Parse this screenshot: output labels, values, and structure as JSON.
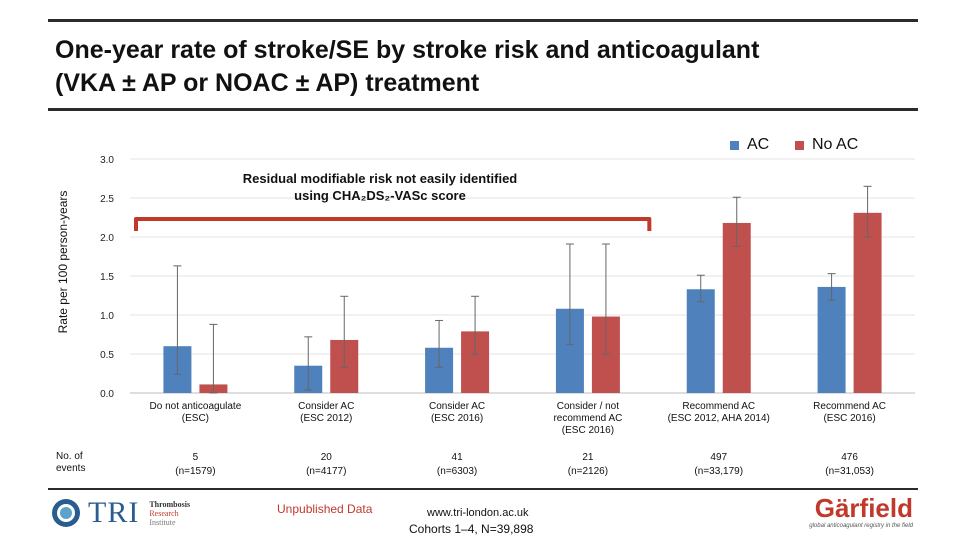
{
  "title": {
    "line1": "One-year rate of stroke/SE by stroke risk and anticoagulant",
    "line2": "(VKA ± AP or NOAC ± AP) treatment"
  },
  "annotation": {
    "line1": "Residual modifiable risk not easily identified",
    "line2": "using CHA₂DS₂-VASc score"
  },
  "colors": {
    "ac": "#4f81bd",
    "no_ac": "#c0504d",
    "accent": "#c0392b"
  },
  "row_label": {
    "line1": "No. of",
    "line2": "events"
  },
  "footer": {
    "tri_word": "TRI",
    "tri_line1": "Thrombosis",
    "tri_line2": "Research",
    "tri_line3": "Institute",
    "unpublished": "Unpublished Data",
    "website": "www.tri-london.ac.uk",
    "cohorts": "Cohorts 1–4, N=39,898",
    "garfield": "Gärfield",
    "garfield_tagline": "global anticoagulant registry in the field"
  },
  "categories": [
    {
      "line1": "Do not anticoagulate",
      "line2": "(ESC)",
      "line3": "",
      "events": "5",
      "n": "(n=1579)"
    },
    {
      "line1": "Consider AC",
      "line2": "(ESC 2012)",
      "line3": "",
      "events": "20",
      "n": "(n=4177)"
    },
    {
      "line1": "Consider AC",
      "line2": "(ESC 2016)",
      "line3": "",
      "events": "41",
      "n": "(n=6303)"
    },
    {
      "line1": "Consider / not",
      "line2": "recommend AC",
      "line3": "(ESC 2016)",
      "events": "21",
      "n": "(n=2126)"
    },
    {
      "line1": "Recommend AC",
      "line2": "(ESC 2012, AHA 2014)",
      "line3": "",
      "events": "497",
      "n": "(n=33,179)"
    },
    {
      "line1": "Recommend AC",
      "line2": "(ESC 2016)",
      "line3": "",
      "events": "476",
      "n": "(n=31,053)"
    }
  ],
  "chart_data": {
    "type": "bar",
    "title": "One-year rate of stroke/SE by stroke risk and anticoagulant (VKA ± AP or NOAC ± AP) treatment",
    "xlabel": "",
    "ylabel": "Rate per 100 person-years",
    "ylim": [
      0,
      3.0
    ],
    "yticks": [
      "0.0",
      "0.5",
      "1.0",
      "1.5",
      "2.0",
      "2.5",
      "3.0"
    ],
    "legend_position": "top-right",
    "categories": [
      "Do not anticoagulate (ESC)",
      "Consider AC (ESC 2012)",
      "Consider AC (ESC 2016)",
      "Consider / not recommend AC (ESC 2016)",
      "Recommend AC (ESC 2012, AHA 2014)",
      "Recommend AC (ESC 2016)"
    ],
    "series": [
      {
        "name": "AC",
        "values": [
          0.6,
          0.35,
          0.58,
          1.08,
          1.33,
          1.36
        ],
        "ci_low": [
          0.24,
          0.04,
          0.33,
          0.62,
          1.17,
          1.19
        ],
        "ci_high": [
          1.63,
          0.72,
          0.93,
          1.91,
          1.51,
          1.53
        ]
      },
      {
        "name": "No AC",
        "values": [
          0.11,
          0.68,
          0.79,
          0.98,
          2.18,
          2.31
        ],
        "ci_low": [
          0.0,
          0.33,
          0.5,
          0.5,
          1.88,
          2.0
        ],
        "ci_high": [
          0.88,
          1.24,
          1.24,
          1.91,
          2.51,
          2.65
        ]
      }
    ]
  }
}
